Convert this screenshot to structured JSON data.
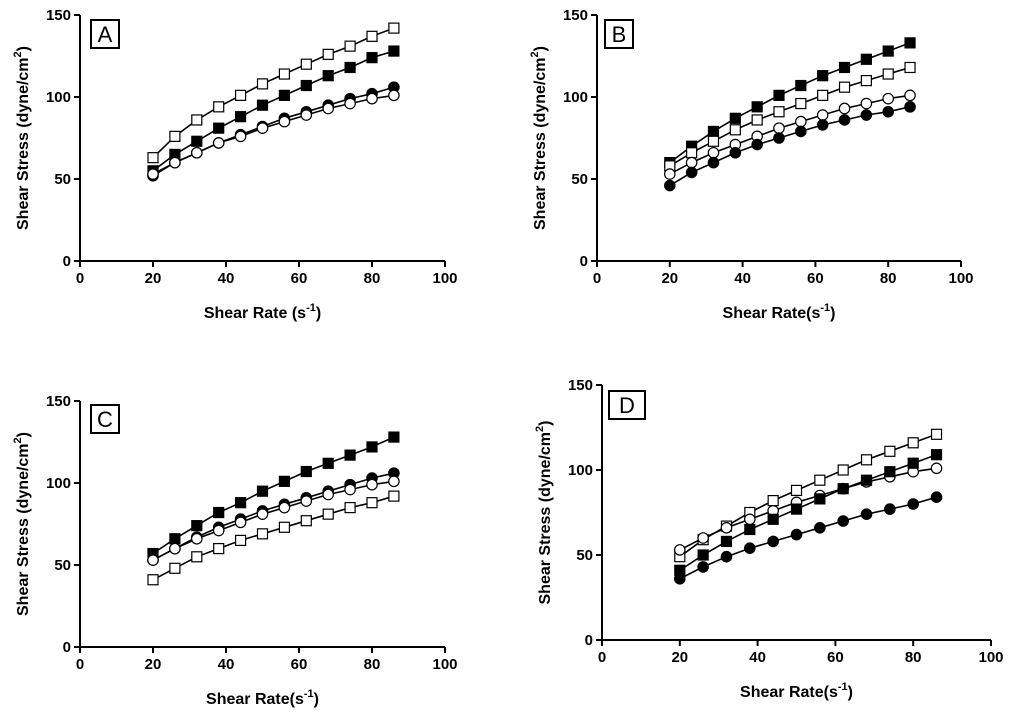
{
  "chart_data": [
    {
      "type": "line",
      "panel": "A",
      "xlabel": "Shear Rate (s-1)",
      "xlabel_main": "Shear Rate (s",
      "xlabel_sup": "-1",
      "xlabel_end": ")",
      "ylabel_main": "Shear Stress (dyne/cm",
      "ylabel_sup": "2",
      "ylabel_end": ")",
      "xlim": [
        0,
        100
      ],
      "ylim": [
        0,
        150
      ],
      "xticks": [
        "0",
        "20",
        "40",
        "60",
        "80",
        "100"
      ],
      "yticks": [
        "0",
        "50",
        "100",
        "150"
      ],
      "x": [
        20,
        26,
        32,
        38,
        44,
        50,
        56,
        62,
        68,
        74,
        80,
        86
      ],
      "series": [
        {
          "marker": "open-square",
          "values": [
            63,
            76,
            86,
            94,
            101,
            108,
            114,
            120,
            126,
            131,
            137,
            142
          ]
        },
        {
          "marker": "filled-square",
          "values": [
            55,
            65,
            73,
            81,
            88,
            95,
            101,
            107,
            113,
            118,
            124,
            128
          ]
        },
        {
          "marker": "filled-circle",
          "values": [
            52,
            60,
            66,
            72,
            77,
            82,
            87,
            91,
            95,
            99,
            102,
            106
          ]
        },
        {
          "marker": "open-circle",
          "values": [
            53,
            60,
            66,
            72,
            76,
            81,
            85,
            89,
            93,
            96,
            99,
            101
          ]
        }
      ]
    },
    {
      "type": "line",
      "panel": "B",
      "xlabel": "Shear Rate(s-1)",
      "xlabel_main": "Shear Rate(s",
      "xlabel_sup": "-1",
      "xlabel_end": ")",
      "ylabel_main": "Shear Stress (dyne/cm",
      "ylabel_sup": "2",
      "ylabel_end": ")",
      "xlim": [
        0,
        100
      ],
      "ylim": [
        0,
        150
      ],
      "xticks": [
        "0",
        "20",
        "40",
        "60",
        "80",
        "100"
      ],
      "yticks": [
        "0",
        "50",
        "100",
        "150"
      ],
      "x": [
        20,
        26,
        32,
        38,
        44,
        50,
        56,
        62,
        68,
        74,
        80,
        86
      ],
      "series": [
        {
          "marker": "filled-square",
          "values": [
            60,
            70,
            79,
            87,
            94,
            101,
            107,
            113,
            118,
            123,
            128,
            133
          ]
        },
        {
          "marker": "open-square",
          "values": [
            58,
            66,
            73,
            80,
            86,
            91,
            96,
            101,
            106,
            110,
            114,
            118
          ]
        },
        {
          "marker": "open-circle",
          "values": [
            53,
            60,
            66,
            71,
            76,
            81,
            85,
            89,
            93,
            96,
            99,
            101
          ]
        },
        {
          "marker": "filled-circle",
          "values": [
            46,
            54,
            60,
            66,
            71,
            75,
            79,
            83,
            86,
            89,
            91,
            94
          ]
        }
      ]
    },
    {
      "type": "line",
      "panel": "C",
      "xlabel": "Shear Rate(s-1)",
      "xlabel_main": "Shear Rate(s",
      "xlabel_sup": "-1",
      "xlabel_end": ")",
      "ylabel_main": "Shear Stress (dyne/cm",
      "ylabel_sup": "2",
      "ylabel_end": ")",
      "xlim": [
        0,
        100
      ],
      "ylim": [
        0,
        150
      ],
      "xticks": [
        "0",
        "20",
        "40",
        "60",
        "80",
        "100"
      ],
      "yticks": [
        "0",
        "50",
        "100",
        "150"
      ],
      "x": [
        20,
        26,
        32,
        38,
        44,
        50,
        56,
        62,
        68,
        74,
        80,
        86
      ],
      "series": [
        {
          "marker": "filled-square",
          "values": [
            57,
            66,
            74,
            82,
            88,
            95,
            101,
            107,
            112,
            117,
            122,
            128
          ]
        },
        {
          "marker": "filled-circle",
          "values": [
            53,
            60,
            67,
            73,
            78,
            83,
            87,
            91,
            95,
            99,
            103,
            106
          ]
        },
        {
          "marker": "open-circle",
          "values": [
            53,
            60,
            66,
            71,
            76,
            81,
            85,
            89,
            93,
            96,
            99,
            101
          ]
        },
        {
          "marker": "open-square",
          "values": [
            41,
            48,
            55,
            60,
            65,
            69,
            73,
            77,
            81,
            85,
            88,
            92
          ]
        }
      ]
    },
    {
      "type": "line",
      "panel": "D",
      "xlabel": "Shear Rate(s-1)",
      "xlabel_main": "Shear Rate(s",
      "xlabel_sup": "-1",
      "xlabel_end": ")",
      "ylabel_main": "Shear Stress (dyne/cm",
      "ylabel_sup": "2",
      "ylabel_end": ")",
      "xlim": [
        0,
        100
      ],
      "ylim": [
        0,
        150
      ],
      "xticks": [
        "0",
        "20",
        "40",
        "60",
        "80",
        "100"
      ],
      "yticks": [
        "0",
        "50",
        "100",
        "150"
      ],
      "x": [
        20,
        26,
        32,
        38,
        44,
        50,
        56,
        62,
        68,
        74,
        80,
        86
      ],
      "series": [
        {
          "marker": "open-square",
          "values": [
            49,
            59,
            67,
            75,
            82,
            88,
            94,
            100,
            106,
            111,
            116,
            121
          ]
        },
        {
          "marker": "open-circle",
          "values": [
            53,
            60,
            66,
            71,
            76,
            81,
            85,
            89,
            93,
            96,
            99,
            101
          ]
        },
        {
          "marker": "filled-square",
          "values": [
            41,
            50,
            58,
            65,
            71,
            77,
            83,
            89,
            94,
            99,
            104,
            109
          ]
        },
        {
          "marker": "filled-circle",
          "values": [
            36,
            43,
            49,
            54,
            58,
            62,
            66,
            70,
            74,
            77,
            80,
            84
          ]
        }
      ]
    }
  ]
}
